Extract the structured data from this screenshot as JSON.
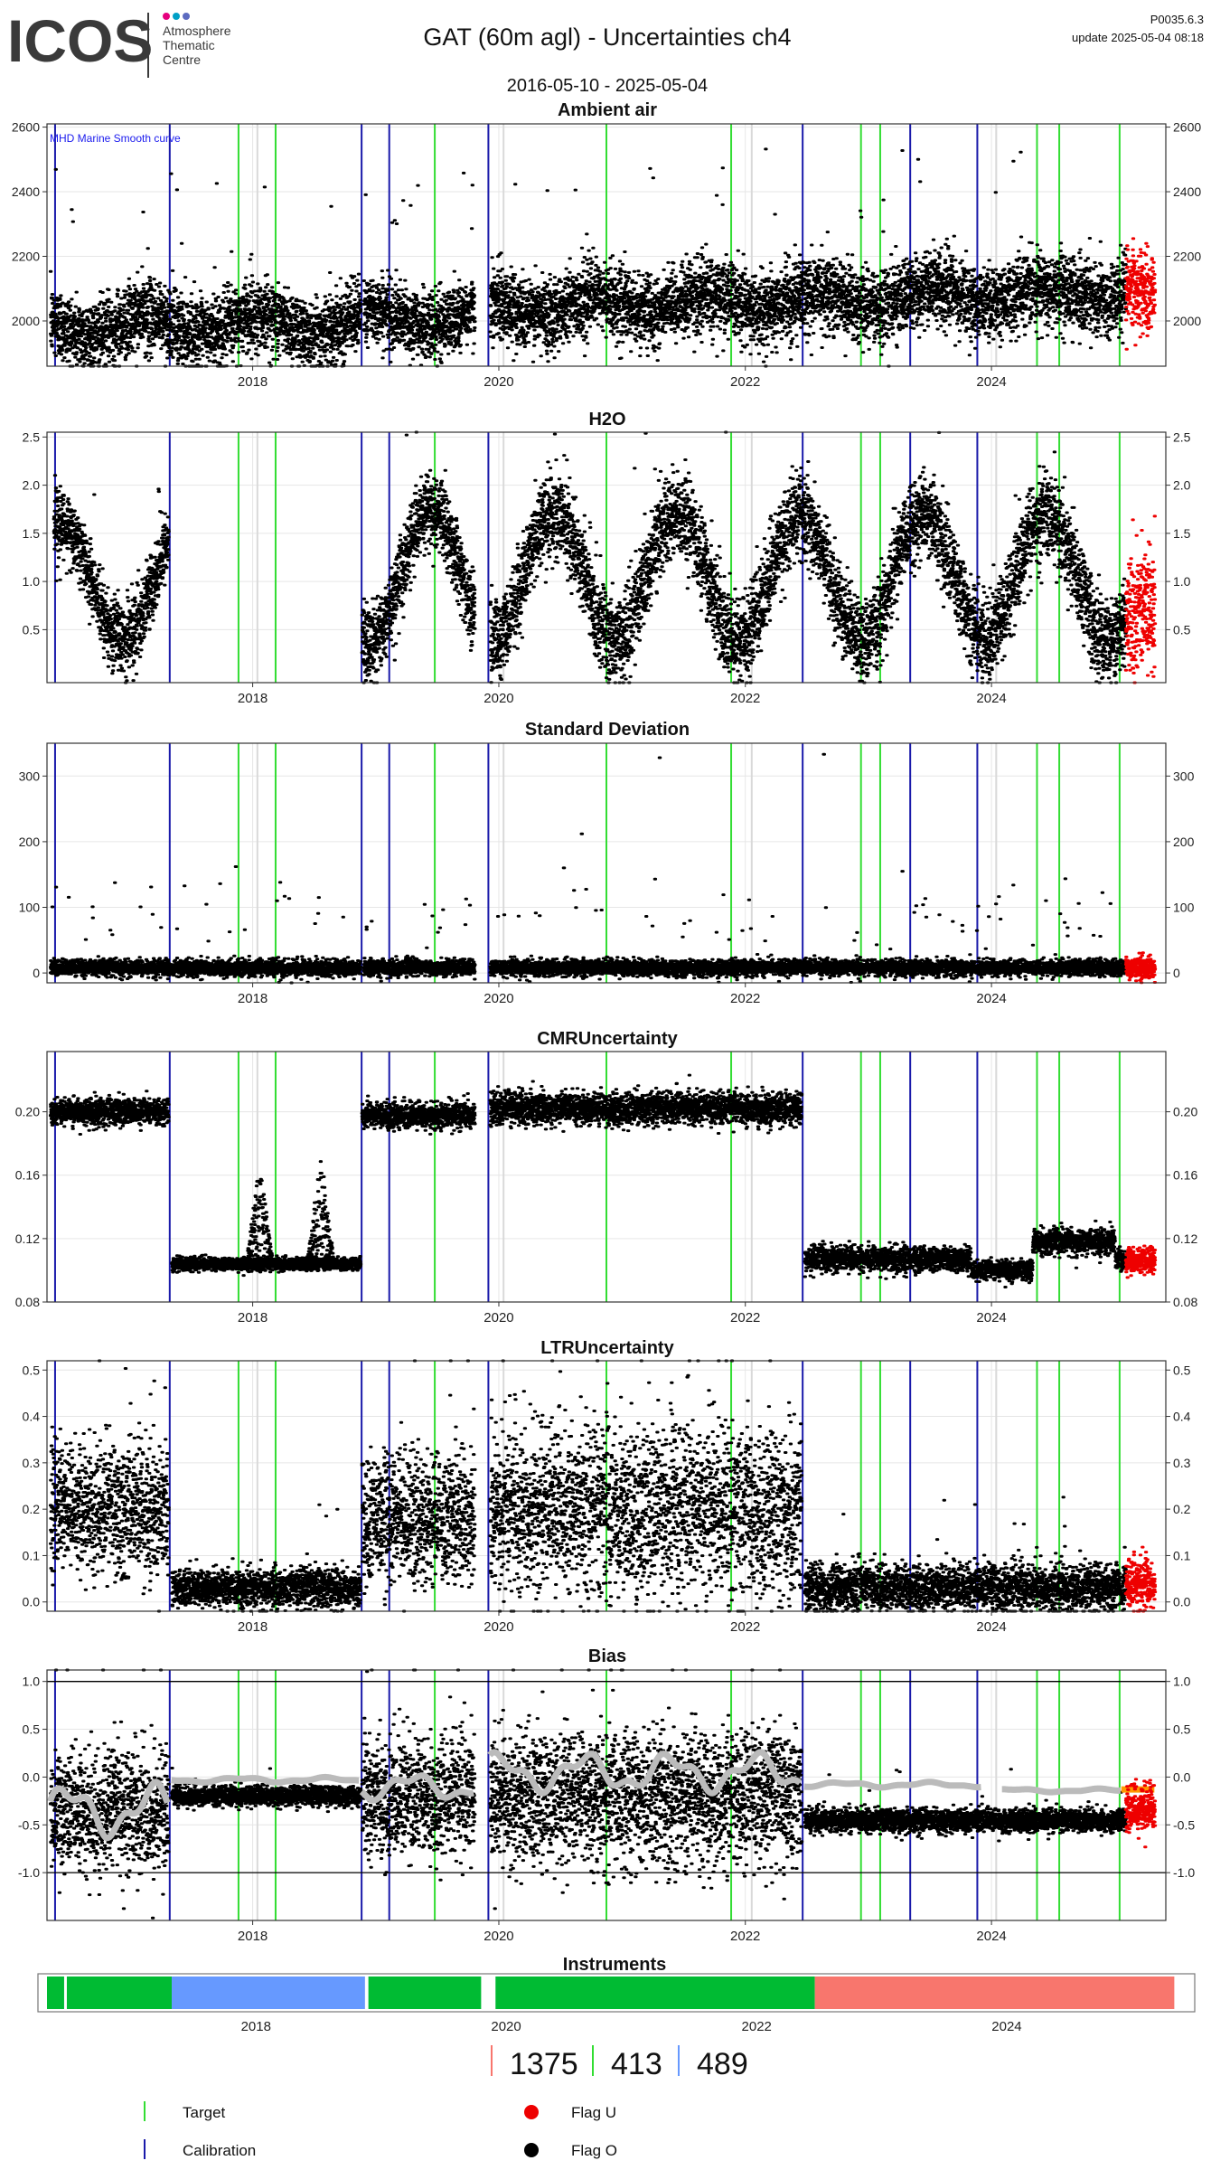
{
  "header": {
    "logo_text": "ICOS",
    "logo_subtitle": [
      "Atmosphere",
      "Thematic",
      "Centre"
    ],
    "title": "GAT  (60m agl) - Uncertainties ch4",
    "date_range": "2016-05-10 - 2025-05-04",
    "product_code": "P0035.6.3",
    "update": "update  2025-05-04 08:18"
  },
  "colors": {
    "target": "#33dd33",
    "calibration": "#1a1aaa",
    "flag_u": "#ee0000",
    "flag_o": "#000000",
    "smooth": "#bbbbbb",
    "grid": "#e6e6e6",
    "gray_vline": "#d9d9d9",
    "inst_green": "#00bb33",
    "inst_blue": "#6699ff",
    "inst_red": "#f8766d",
    "bias_orange": "#ff9900",
    "logo_dots": [
      "#e6007e",
      "#00a0c6",
      "#5c6bc0"
    ]
  },
  "chart_data": {
    "x_range": [
      "2016-05-01",
      "2025-06-01"
    ],
    "x_tick_labels": [
      "2018",
      "2020",
      "2022",
      "2024"
    ],
    "event_lines": {
      "target": [
        "2017-11-20",
        "2018-03-10",
        "2019-06-25",
        "2020-11-15",
        "2021-11-20",
        "2022-12-10",
        "2023-02-05",
        "2024-05-15",
        "2024-07-20",
        "2025-01-15"
      ],
      "calibration": [
        "2016-05-25",
        "2017-04-30",
        "2018-11-20",
        "2019-02-10",
        "2019-12-01",
        "2022-06-20",
        "2023-05-05",
        "2023-11-20"
      ],
      "gray": [
        "2018-01-15",
        "2020-01-15",
        "2022-01-20",
        "2024-01-15"
      ]
    },
    "panels": [
      {
        "key": "ambient",
        "type": "scatter",
        "title": "Ambient air",
        "ylim": [
          1860,
          2610
        ],
        "y_ticks": [
          2000,
          2200,
          2400,
          2600
        ],
        "annotation": "MHD Marine Smooth curve",
        "segments": [
          {
            "from": "2016-05-10",
            "to": "2018-11-15",
            "base": 2000,
            "trend": 5,
            "amp": 60,
            "noise": 55,
            "spikes": 14
          },
          {
            "from": "2018-11-25",
            "to": "2019-10-20",
            "base": 2010,
            "trend": 0,
            "amp": 50,
            "noise": 50,
            "spikes": 10
          },
          {
            "from": "2019-12-05",
            "to": "2025-02-01",
            "base": 2040,
            "trend": 10,
            "amp": 50,
            "noise": 55,
            "spikes": 26
          }
        ],
        "flag_u": {
          "from": "2025-02-01",
          "to": "2025-04-28",
          "base": 2100,
          "noise": 60
        }
      },
      {
        "key": "h2o",
        "type": "scatter",
        "title": "H2O",
        "ylim": [
          -0.05,
          2.55
        ],
        "y_ticks": [
          0.5,
          1.0,
          1.5,
          2.0,
          2.5
        ],
        "segments": [
          {
            "from": "2016-05-20",
            "to": "2017-04-25",
            "base": 1.0,
            "trend": 0,
            "amp": 0.6,
            "noise": 0.18,
            "spikes": 4,
            "seasonal": true
          },
          {
            "from": "2018-11-20",
            "to": "2019-10-20",
            "base": 1.05,
            "trend": 0,
            "amp": 0.7,
            "noise": 0.2,
            "spikes": 4,
            "seasonal": true
          },
          {
            "from": "2019-12-05",
            "to": "2025-02-01",
            "base": 1.05,
            "trend": 0,
            "amp": 0.65,
            "noise": 0.22,
            "spikes": 8,
            "seasonal": true
          }
        ],
        "flag_u": {
          "from": "2025-02-01",
          "to": "2025-04-28",
          "base": 0.7,
          "noise": 0.3
        }
      },
      {
        "key": "stdev",
        "type": "scatter",
        "title": "Standard Deviation",
        "ylim": [
          -15,
          350
        ],
        "y_ticks": [
          0,
          100,
          200,
          300
        ],
        "segments": [
          {
            "from": "2016-05-10",
            "to": "2018-11-15",
            "base": 8,
            "trend": 0,
            "amp": 0,
            "noise": 6,
            "spikes": 28
          },
          {
            "from": "2018-11-25",
            "to": "2019-10-20",
            "base": 8,
            "trend": 0,
            "amp": 0,
            "noise": 6,
            "spikes": 12
          },
          {
            "from": "2019-12-05",
            "to": "2025-02-01",
            "base": 8,
            "trend": 0,
            "amp": 0,
            "noise": 6,
            "spikes": 60
          }
        ],
        "flag_u": {
          "from": "2025-02-01",
          "to": "2025-04-28",
          "base": 8,
          "noise": 8
        },
        "outliers": [
          [
            "2020-09-01",
            212
          ],
          [
            "2021-04-20",
            328
          ],
          [
            "2022-08-20",
            333
          ],
          [
            "2017-11-10",
            162
          ],
          [
            "2020-07-10",
            160
          ],
          [
            "2023-04-10",
            155
          ]
        ]
      },
      {
        "key": "cmr",
        "type": "scatter",
        "title": "CMRUncertainty",
        "ylim": [
          0.08,
          0.238
        ],
        "y_ticks": [
          0.08,
          0.12,
          0.16,
          0.2
        ],
        "segments": [
          {
            "from": "2016-05-10",
            "to": "2017-04-25",
            "base": 0.2,
            "trend": 0,
            "amp": 0,
            "noise": 0.004,
            "spikes": 0
          },
          {
            "from": "2017-05-05",
            "to": "2018-11-15",
            "base": 0.104,
            "trend": 0,
            "amp": 0,
            "noise": 0.002,
            "spikes": 0
          },
          {
            "from": "2018-11-20",
            "to": "2019-10-20",
            "base": 0.198,
            "trend": 0,
            "amp": 0,
            "noise": 0.004,
            "spikes": 0
          },
          {
            "from": "2019-12-05",
            "to": "2022-06-15",
            "base": 0.202,
            "trend": 0,
            "amp": 0,
            "noise": 0.005,
            "spikes": 0
          },
          {
            "from": "2022-06-25",
            "to": "2023-10-30",
            "base": 0.107,
            "trend": 0,
            "amp": 0,
            "noise": 0.004,
            "spikes": 0
          },
          {
            "from": "2023-11-01",
            "to": "2024-04-30",
            "base": 0.1,
            "trend": 0,
            "amp": 0,
            "noise": 0.003,
            "spikes": 0
          },
          {
            "from": "2024-05-01",
            "to": "2024-12-30",
            "base": 0.118,
            "trend": 0,
            "amp": 0,
            "noise": 0.004,
            "spikes": 0
          },
          {
            "from": "2025-01-01",
            "to": "2025-02-01",
            "base": 0.106,
            "trend": 0,
            "amp": 0,
            "noise": 0.003,
            "spikes": 0
          }
        ],
        "flag_u": {
          "from": "2025-02-01",
          "to": "2025-04-28",
          "base": 0.106,
          "noise": 0.004
        },
        "bumps": [
          [
            "2018-01-20",
            0.17,
            40
          ],
          [
            "2018-07-20",
            0.175,
            40
          ]
        ]
      },
      {
        "key": "ltr",
        "type": "scatter",
        "title": "LTRUncertainty",
        "ylim": [
          -0.02,
          0.52
        ],
        "y_ticks": [
          0.0,
          0.1,
          0.2,
          0.3,
          0.4,
          0.5
        ],
        "segments": [
          {
            "from": "2016-05-10",
            "to": "2017-04-25",
            "base": 0.2,
            "trend": 0,
            "amp": 0,
            "noise": 0.07,
            "spikes": 4
          },
          {
            "from": "2017-05-05",
            "to": "2018-11-15",
            "base": 0.03,
            "trend": 0,
            "amp": 0,
            "noise": 0.02,
            "spikes": 3
          },
          {
            "from": "2018-11-20",
            "to": "2019-10-20",
            "base": 0.18,
            "trend": 0,
            "amp": 0,
            "noise": 0.07,
            "spikes": 4
          },
          {
            "from": "2019-12-05",
            "to": "2022-06-15",
            "base": 0.2,
            "trend": 0,
            "amp": 0,
            "noise": 0.09,
            "spikes": 10
          },
          {
            "from": "2022-06-25",
            "to": "2025-02-01",
            "base": 0.03,
            "trend": 0,
            "amp": 0,
            "noise": 0.025,
            "spikes": 10
          }
        ],
        "flag_u": {
          "from": "2025-02-01",
          "to": "2025-04-28",
          "base": 0.04,
          "noise": 0.03
        }
      },
      {
        "key": "bias",
        "type": "scatter",
        "title": "Bias",
        "ylim": [
          -1.5,
          1.12
        ],
        "y_ticks": [
          -1.0,
          -0.5,
          0.0,
          0.5,
          1.0
        ],
        "hlines": [
          1.0,
          -1.0
        ],
        "segments": [
          {
            "from": "2016-05-10",
            "to": "2017-04-25",
            "base": -0.35,
            "trend": 0,
            "amp": 0,
            "noise": 0.3,
            "spikes": 6
          },
          {
            "from": "2017-05-05",
            "to": "2018-11-15",
            "base": -0.2,
            "trend": 0,
            "amp": 0,
            "noise": 0.05,
            "spikes": 3
          },
          {
            "from": "2018-11-20",
            "to": "2019-10-20",
            "base": -0.2,
            "trend": 0,
            "amp": 0,
            "noise": 0.3,
            "spikes": 5
          },
          {
            "from": "2019-12-05",
            "to": "2022-06-15",
            "base": -0.2,
            "trend": 0,
            "amp": 0,
            "noise": 0.35,
            "spikes": 10
          },
          {
            "from": "2022-06-25",
            "to": "2025-02-01",
            "base": -0.45,
            "trend": 0,
            "amp": 0,
            "noise": 0.06,
            "spikes": 6
          }
        ],
        "flag_u": {
          "from": "2025-02-01",
          "to": "2025-04-28",
          "base": -0.35,
          "noise": 0.12
        },
        "smooth_segments": [
          {
            "from": "2016-05-10",
            "to": "2017-04-25",
            "base": -0.35,
            "amp": 0.3
          },
          {
            "from": "2017-05-05",
            "to": "2018-11-15",
            "base": -0.03,
            "amp": 0.03
          },
          {
            "from": "2018-11-20",
            "to": "2019-10-20",
            "base": -0.1,
            "amp": 0.15
          },
          {
            "from": "2019-12-05",
            "to": "2022-06-15",
            "base": 0.05,
            "amp": 0.22
          },
          {
            "from": "2022-06-25",
            "to": "2023-12-01",
            "base": -0.08,
            "amp": 0.03
          },
          {
            "from": "2024-02-01",
            "to": "2025-01-20",
            "base": -0.14,
            "amp": 0.02
          }
        ],
        "orange_segment": {
          "from": "2025-01-20",
          "to": "2025-04-28",
          "value": -0.13
        }
      }
    ],
    "instruments": {
      "title": "Instruments",
      "x_tick_labels": [
        "2018",
        "2020",
        "2022",
        "2024"
      ],
      "bars": [
        {
          "from": "2016-05-01",
          "to": "2017-04-30",
          "color": "green"
        },
        {
          "from": "2017-04-30",
          "to": "2018-11-15",
          "color": "blue"
        },
        {
          "from": "2018-11-25",
          "to": "2019-10-20",
          "color": "green"
        },
        {
          "from": "2019-12-01",
          "to": "2022-06-20",
          "color": "green"
        },
        {
          "from": "2022-06-20",
          "to": "2025-05-04",
          "color": "red"
        }
      ]
    }
  },
  "counts": [
    {
      "value": "1375",
      "color": "#f8766d"
    },
    {
      "value": "413",
      "color": "#33dd33"
    },
    {
      "value": "489",
      "color": "#6699ff"
    }
  ],
  "legend": [
    {
      "label": "Target",
      "type": "line",
      "color": "#33dd33"
    },
    {
      "label": "Calibration",
      "type": "line",
      "color": "#1a1aaa"
    },
    {
      "label": "Flag U",
      "type": "dot",
      "color": "#ee0000"
    },
    {
      "label": "Flag O",
      "type": "dot",
      "color": "#000000"
    }
  ]
}
